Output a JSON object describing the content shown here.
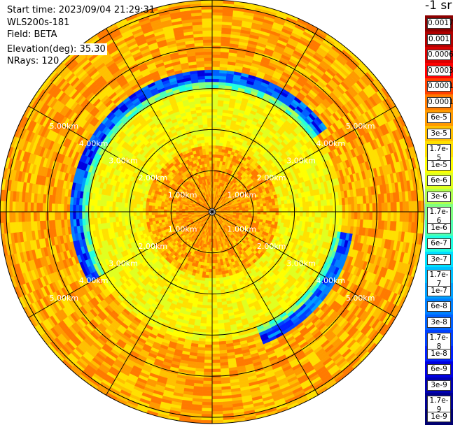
{
  "info": {
    "start_time": "Start time: 2023/09/04 21:29:31",
    "instrument": "WLS200s-181",
    "field": "Field: BETA",
    "elevation": "Elevation(deg): 35.30",
    "nrays": "NRays: 120"
  },
  "colorbar": {
    "title": "-1 sr",
    "labels": [
      "0.0017",
      "0.001",
      "0.0006",
      "0.0003",
      "0.00017",
      "0.0001",
      "6e-5",
      "3e-5",
      "1.7e-5",
      "1e-5",
      "6e-6",
      "3e-6",
      "1.7e-6",
      "1e-6",
      "6e-7",
      "3e-7",
      "1.7e-7",
      "1e-7",
      "6e-8",
      "3e-8",
      "1.7e-8",
      "1e-8",
      "6e-9",
      "3e-9",
      "1.7e-9",
      "1e-9"
    ],
    "colors": [
      "#8b0000",
      "#b00000",
      "#d80000",
      "#ff0000",
      "#ff4000",
      "#ff7a00",
      "#ff9a00",
      "#ffc000",
      "#ffe000",
      "#ffff00",
      "#e0ff20",
      "#b0ff50",
      "#80ff80",
      "#50ffb0",
      "#20ffe0",
      "#00e0ff",
      "#00c0ff",
      "#00a0ff",
      "#0080ff",
      "#0060ff",
      "#0040ff",
      "#0020ff",
      "#0000e0",
      "#0000b0",
      "#000090",
      "#000070"
    ]
  },
  "chart_data": {
    "type": "heatmap",
    "projection": "polar PPI",
    "field": "BETA",
    "units": "-1 sr",
    "elevation_deg": 35.3,
    "nrays": 120,
    "range_rings": [
      {
        "label": "1.00km",
        "value_km": 1.0
      },
      {
        "label": "2.00km",
        "value_km": 2.0
      },
      {
        "label": "3.00km",
        "value_km": 3.0
      },
      {
        "label": "4.00km",
        "value_km": 4.0
      },
      {
        "label": "5.00km",
        "value_km": 5.0
      }
    ],
    "max_range_km": 5.15,
    "spoke_interval_deg": 30,
    "features": [
      {
        "description": "high backscatter ring",
        "range_km": [
          3.2,
          3.45
        ],
        "sectors_deg": [
          [
            -120,
            55
          ],
          [
            100,
            160
          ]
        ],
        "peak_value": "1e-4"
      },
      {
        "description": "background aerosol",
        "range_km": [
          0,
          5.15
        ],
        "typical_value": "1e-7"
      }
    ]
  }
}
